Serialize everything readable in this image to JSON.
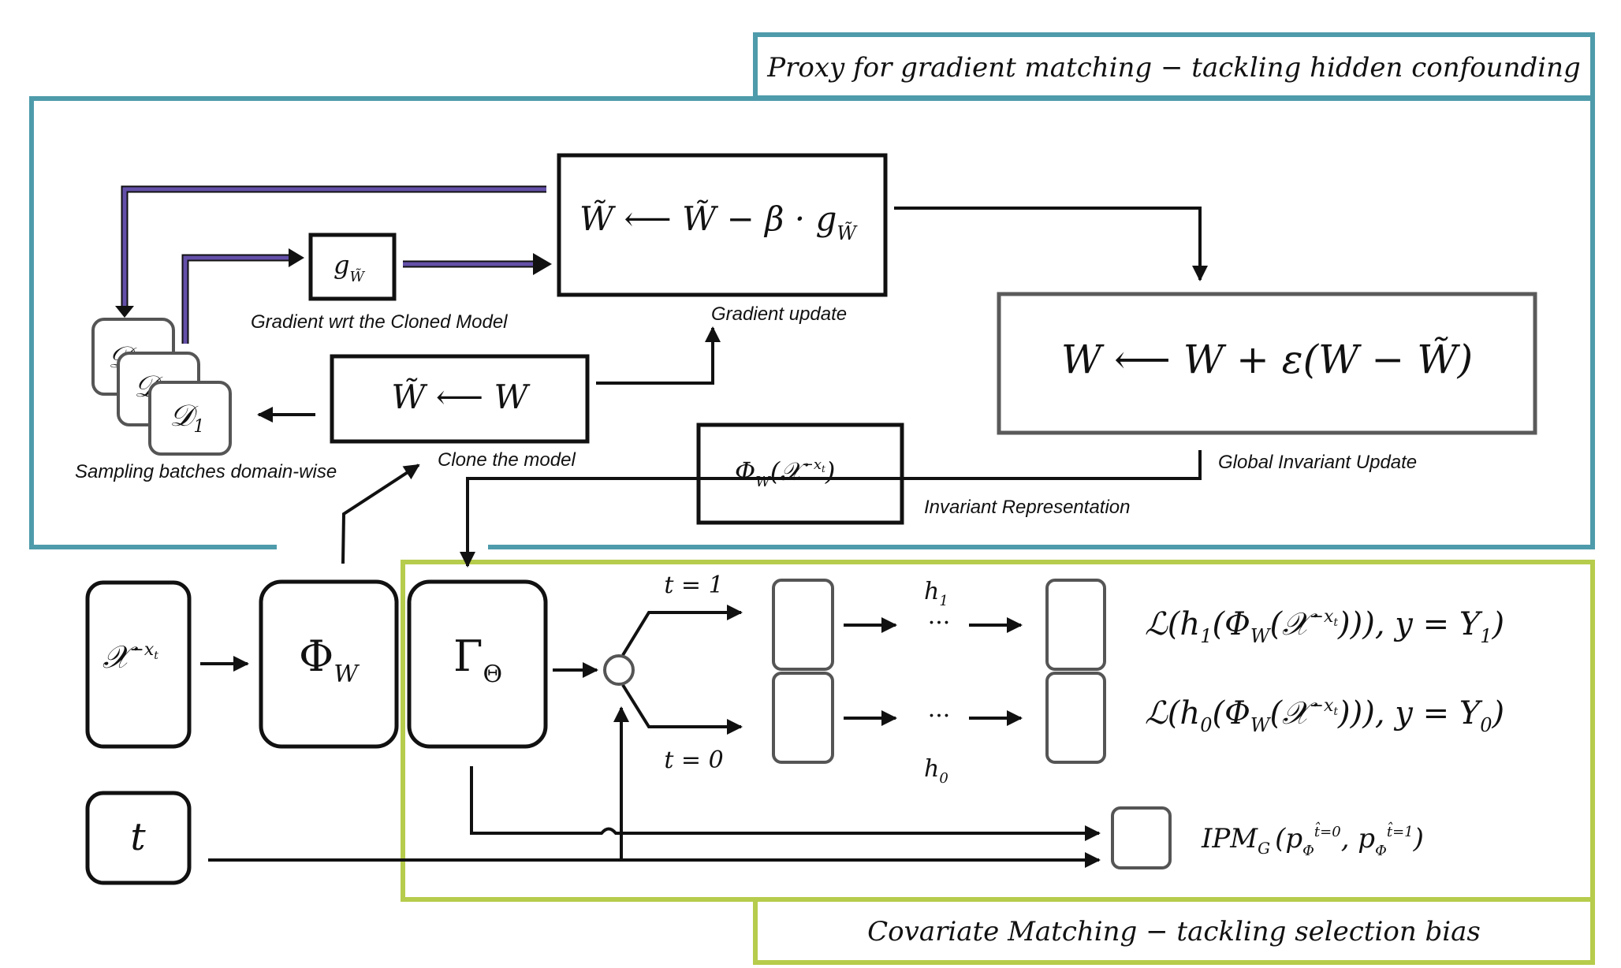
{
  "colors": {
    "teal": "#4e9bab",
    "lime": "#b6cc4c",
    "purple": "#6450a8",
    "ink": "#111111",
    "box_grey": "#5a5a5a"
  },
  "headers": {
    "proxy": "Proxy for gradient matching − tackling hidden confounding",
    "covariate": "Covariate Matching − tackling selection bias"
  },
  "labels": {
    "gradient_cloned": "Gradient wrt the Cloned Model",
    "gradient_update": "Gradient update",
    "sampling": "Sampling batches domain-wise",
    "clone_model": "Clone the model",
    "global_update": "Global Invariant Update",
    "invariant_rep": "Invariant Representation"
  },
  "math": {
    "wtilde_update": "W̃ ⟵ W̃ − β · g",
    "wtilde_update_sub": "W̃",
    "g_main": "g",
    "g_sub": "W̃",
    "global_update": "W ⟵ W + ε(W − W̃)",
    "clone": "W̃ ⟵ W",
    "phi_rep": "Φ",
    "phi_rep_sub": "W",
    "phi_rep_arg": "(𝒳",
    "phi_rep_sup": "−x",
    "phi_rep_sup_sub": "t",
    "phi_rep_close": ")",
    "domain_top": "𝒟",
    "domain_mid": "𝒟",
    "domain_front": "𝒟",
    "domain_front_sub": "1",
    "x_input": "𝒳",
    "x_input_sup": "−x",
    "x_input_sup_sub": "t",
    "phi_w": "Φ",
    "phi_w_sub": "W",
    "gamma": "Γ",
    "gamma_sub": "Θ",
    "t_input": "t",
    "t1": "t = 1",
    "t0": "t = 0",
    "h1": "h",
    "h1_sub": "1",
    "h0": "h",
    "h0_sub": "0",
    "dots": "···",
    "loss1": "ℒ(h₁(Φ_W(𝒳⁻ˣᵗ))), y = Y₁)",
    "loss1_parts": [
      "ℒ(h",
      "1",
      "(Φ",
      "W",
      "(𝒳",
      "−x",
      "t",
      "))), y = Y",
      "1",
      ")"
    ],
    "loss0_parts": [
      "ℒ(h",
      "0",
      "(Φ",
      "W",
      "(𝒳",
      "−x",
      "t",
      "))), y = Y",
      "0",
      ")"
    ],
    "ipm": "IPM",
    "ipm_sub": "G",
    "ipm_args": [
      "(p",
      "Φ",
      "t̂=0",
      ", p",
      "Φ",
      "t̂=1",
      ")"
    ]
  }
}
